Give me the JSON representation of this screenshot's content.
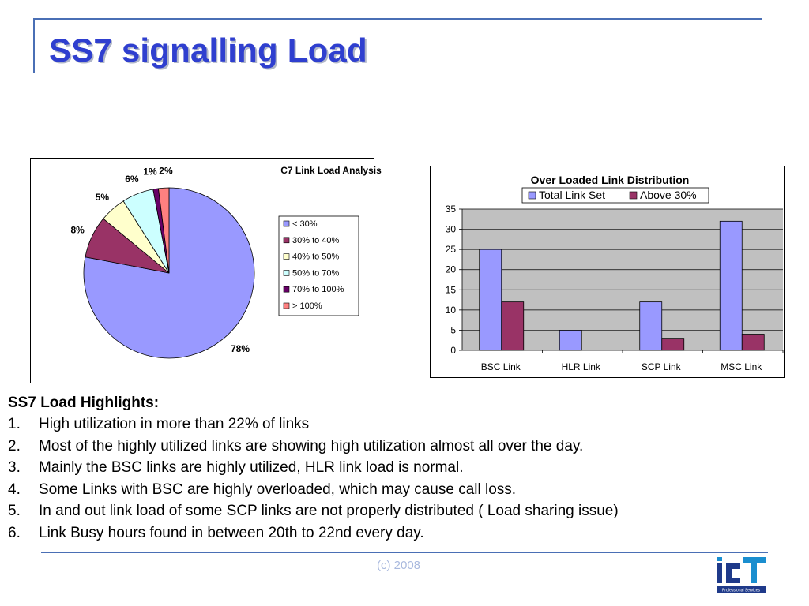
{
  "slide": {
    "title": "SS7 signalling Load",
    "footer": "(c) 2008",
    "logo_text": "iCT Professional Services"
  },
  "highlights": {
    "title": "SS7 Load Highlights:",
    "items": [
      {
        "num": "1.",
        "text": "High utilization in more than 22% of links"
      },
      {
        "num": "2.",
        "text": "Most of the highly utilized links are showing high utilization almost all over the day."
      },
      {
        "num": "3.",
        "text": "Mainly the BSC links are highly utilized, HLR link load is normal."
      },
      {
        "num": "4.",
        "text": "Some Links with BSC are highly overloaded, which may cause call loss."
      },
      {
        "num": "5.",
        "text": "In and out link load of some SCP links are not properly distributed ( Load sharing issue)"
      },
      {
        "num": "6.",
        "text": "Link Busy hours found in between 20th to 22nd every day."
      }
    ]
  },
  "chart_data": [
    {
      "type": "pie",
      "title": "C7 Link Load Analysis",
      "categories": [
        "< 30%",
        "30% to 40%",
        "40% to 50%",
        "50% to 70%",
        "70% to 100%",
        "> 100%"
      ],
      "values": [
        78,
        8,
        5,
        6,
        1,
        2
      ],
      "data_labels": [
        "78%",
        "8%",
        "5%",
        "6%",
        "1%",
        "2%"
      ],
      "colors": [
        "#9999ff",
        "#993366",
        "#ffffcc",
        "#ccffff",
        "#660066",
        "#ff8080"
      ],
      "legend": "right"
    },
    {
      "type": "bar",
      "title": "Over Loaded Link Distribution",
      "categories": [
        "BSC Link",
        "HLR Link",
        "SCP Link",
        "MSC Link"
      ],
      "series": [
        {
          "name": "Total Link Set",
          "values": [
            25,
            5,
            12,
            32
          ],
          "color": "#9999ff"
        },
        {
          "name": "Above 30%",
          "values": [
            12,
            0,
            3,
            4
          ],
          "color": "#993366"
        }
      ],
      "ylim": [
        0,
        35
      ],
      "yticks": [
        "0",
        "5",
        "10",
        "15",
        "20",
        "25",
        "30",
        "35"
      ],
      "legend": "top",
      "plot_background": "#c0c0c0",
      "grid": true
    }
  ]
}
